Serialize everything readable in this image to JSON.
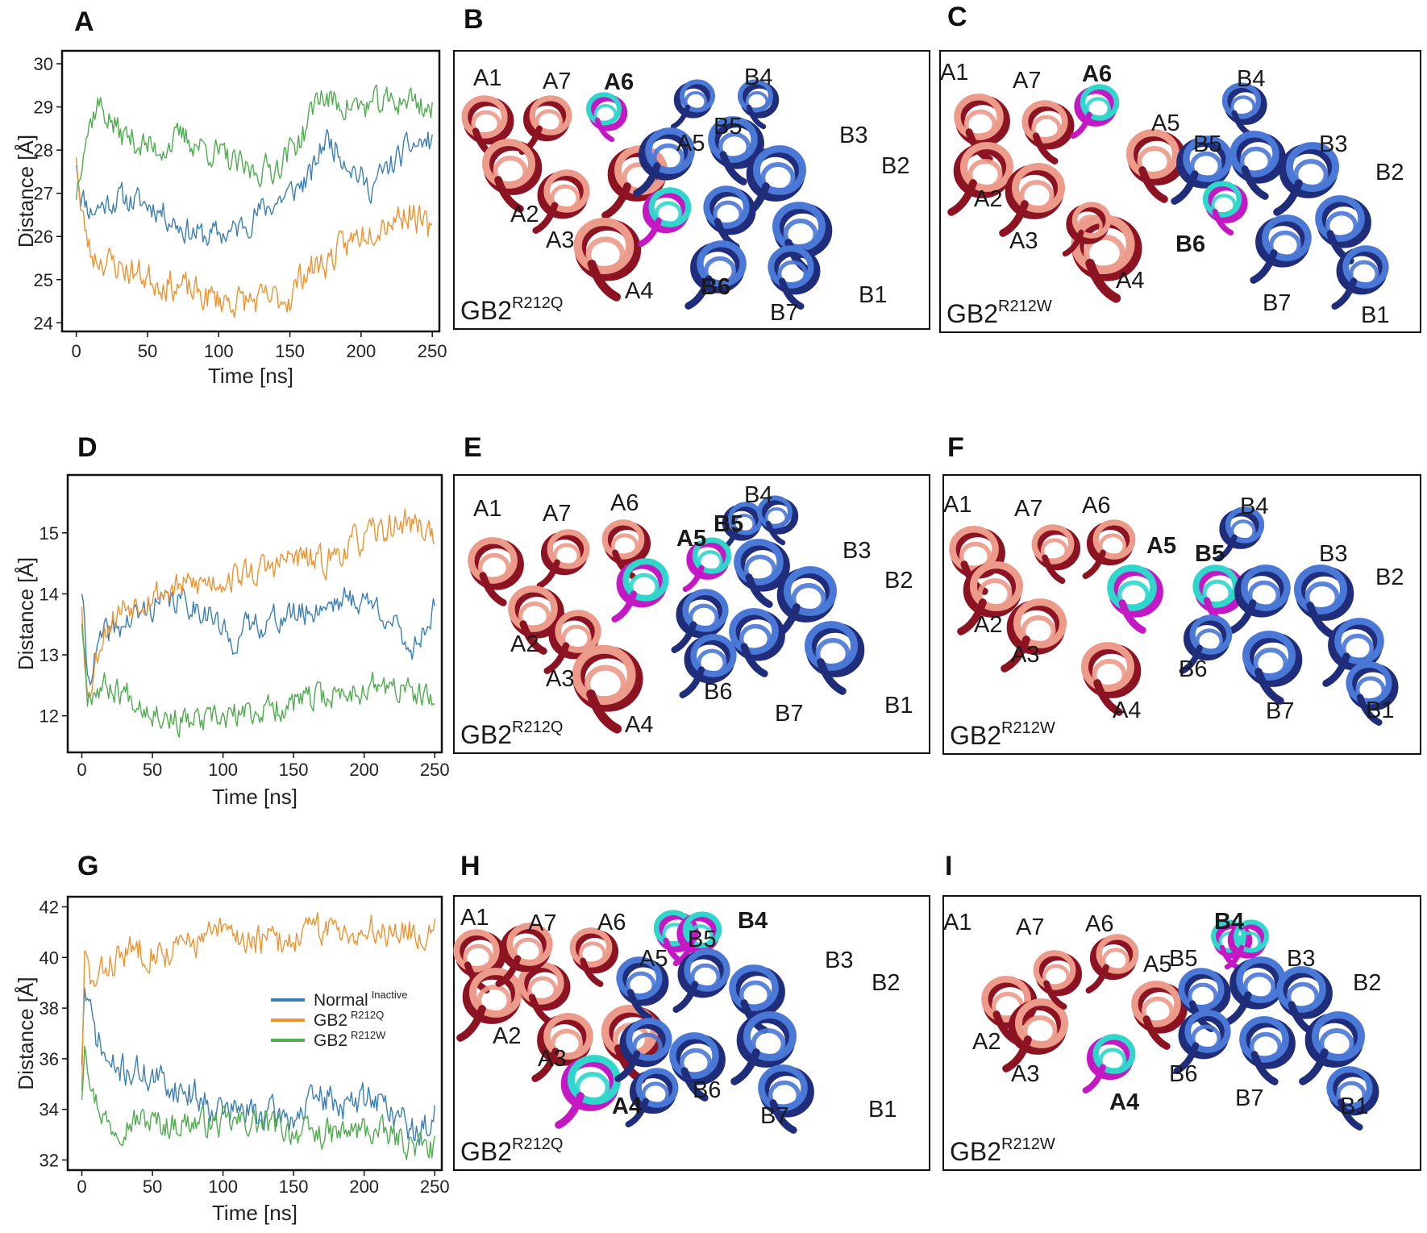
{
  "panels": [
    "A",
    "B",
    "C",
    "D",
    "E",
    "F",
    "G",
    "H",
    "I"
  ],
  "colors": {
    "normal": "#3b7fb6",
    "r212q": "#f0922f",
    "r212w": "#4fac4f",
    "helix_a_light": "#ec9a8a",
    "helix_a_dark": "#8c1422",
    "helix_b_light": "#4a78d6",
    "helix_b_dark": "#1f2d7a",
    "cyan": "#2fd6cc",
    "magenta": "#c418c4"
  },
  "chart_data": [
    {
      "panel": "A",
      "type": "line",
      "xlabel": "Time [ns]",
      "ylabel": "Distance [Å]",
      "xlim": [
        -10,
        255
      ],
      "ylim": [
        23.8,
        30.3
      ],
      "xticks": [
        0,
        50,
        100,
        150,
        200,
        250
      ],
      "yticks": [
        24,
        25,
        26,
        27,
        28,
        29,
        30
      ],
      "series": [
        {
          "name": "Normal Inactive",
          "key": "normal",
          "seed": 11,
          "noise": 0.28,
          "x": [
            0,
            3,
            10,
            30,
            55,
            75,
            90,
            110,
            130,
            150,
            165,
            175,
            190,
            205,
            220,
            235,
            250
          ],
          "values": [
            27.8,
            27.0,
            26.6,
            26.9,
            26.7,
            26.2,
            26.0,
            26.1,
            26.6,
            27.0,
            27.4,
            28.3,
            27.8,
            27.1,
            27.6,
            28.1,
            28.2
          ]
        },
        {
          "name": "GB2 R212Q",
          "key": "r212q",
          "seed": 23,
          "noise": 0.32,
          "x": [
            0,
            3,
            10,
            30,
            55,
            75,
            90,
            110,
            130,
            150,
            160,
            175,
            190,
            205,
            220,
            235,
            250
          ],
          "values": [
            28.0,
            26.6,
            25.6,
            25.3,
            25.0,
            24.8,
            24.6,
            24.5,
            24.5,
            24.6,
            25.2,
            25.4,
            25.8,
            26.2,
            26.4,
            26.6,
            26.0
          ]
        },
        {
          "name": "GB2 R212W",
          "key": "r212w",
          "seed": 37,
          "noise": 0.3,
          "x": [
            0,
            5,
            15,
            30,
            55,
            75,
            100,
            120,
            140,
            160,
            170,
            180,
            200,
            220,
            235,
            250
          ],
          "values": [
            27.0,
            28.2,
            29.1,
            28.4,
            28.0,
            28.3,
            27.9,
            27.5,
            27.6,
            28.4,
            29.3,
            29.1,
            29.0,
            29.1,
            29.2,
            28.9
          ]
        }
      ]
    },
    {
      "panel": "D",
      "type": "line",
      "xlabel": "Time [ns]",
      "ylabel": "Distance [Å]",
      "xlim": [
        -10,
        255
      ],
      "ylim": [
        11.4,
        15.95
      ],
      "xticks": [
        0,
        50,
        100,
        150,
        200,
        250
      ],
      "yticks": [
        12,
        13,
        14,
        15
      ],
      "series": [
        {
          "name": "Normal Inactive",
          "key": "normal",
          "seed": 41,
          "noise": 0.2,
          "x": [
            0,
            4,
            15,
            30,
            50,
            70,
            90,
            105,
            120,
            140,
            160,
            180,
            200,
            215,
            225,
            235,
            250
          ],
          "values": [
            14.1,
            12.6,
            13.3,
            13.5,
            13.8,
            13.9,
            13.7,
            13.2,
            13.5,
            13.6,
            13.7,
            13.9,
            13.9,
            13.7,
            13.3,
            13.1,
            13.8
          ]
        },
        {
          "name": "GB2 R212Q",
          "key": "r212q",
          "seed": 53,
          "noise": 0.22,
          "x": [
            0,
            4,
            15,
            30,
            50,
            70,
            90,
            110,
            130,
            150,
            170,
            190,
            210,
            230,
            250
          ],
          "values": [
            13.9,
            12.3,
            13.4,
            13.8,
            14.0,
            14.1,
            14.2,
            14.3,
            14.4,
            14.6,
            14.5,
            14.8,
            15.0,
            15.2,
            15.0
          ]
        },
        {
          "name": "GB2 R212W",
          "key": "r212w",
          "seed": 67,
          "noise": 0.2,
          "x": [
            0,
            4,
            15,
            30,
            50,
            70,
            90,
            110,
            130,
            150,
            170,
            190,
            210,
            230,
            250
          ],
          "values": [
            13.6,
            12.4,
            12.5,
            12.4,
            12.1,
            11.9,
            11.9,
            12.0,
            12.1,
            12.2,
            12.3,
            12.4,
            12.5,
            12.4,
            12.2
          ]
        }
      ]
    },
    {
      "panel": "G",
      "type": "line",
      "xlabel": "Time [ns]",
      "ylabel": "Distance [Å]",
      "xlim": [
        -10,
        255
      ],
      "ylim": [
        31.6,
        42.4
      ],
      "xticks": [
        0,
        50,
        100,
        150,
        200,
        250
      ],
      "yticks": [
        32,
        34,
        36,
        38,
        40,
        42
      ],
      "legend": [
        {
          "label": "Normal",
          "sup": "Inactive",
          "key": "normal"
        },
        {
          "label": "GB2",
          "sup": "R212Q",
          "key": "r212q"
        },
        {
          "label": "GB2",
          "sup": "R212W",
          "key": "r212w"
        }
      ],
      "legend_position": "right-center",
      "series": [
        {
          "name": "Normal Inactive",
          "key": "normal",
          "seed": 71,
          "noise": 0.55,
          "x": [
            0,
            2,
            8,
            20,
            40,
            60,
            80,
            100,
            130,
            150,
            170,
            190,
            205,
            220,
            240,
            250
          ],
          "values": [
            36.0,
            38.8,
            37.2,
            35.6,
            35.5,
            35.0,
            34.6,
            34.0,
            33.8,
            33.7,
            34.5,
            34.1,
            34.6,
            33.9,
            32.9,
            34.0
          ]
        },
        {
          "name": "GB2 R212Q",
          "key": "r212q",
          "seed": 83,
          "noise": 0.55,
          "x": [
            0,
            2,
            8,
            20,
            40,
            60,
            80,
            100,
            120,
            140,
            160,
            180,
            200,
            220,
            240,
            250
          ],
          "values": [
            35.0,
            40.0,
            38.8,
            39.8,
            40.4,
            40.2,
            40.6,
            41.0,
            40.7,
            40.6,
            41.0,
            41.2,
            41.0,
            41.2,
            40.9,
            41.3
          ]
        },
        {
          "name": "GB2 R212W",
          "key": "r212w",
          "seed": 97,
          "noise": 0.5,
          "x": [
            0,
            2,
            8,
            20,
            40,
            60,
            80,
            100,
            120,
            140,
            160,
            180,
            200,
            220,
            240,
            250
          ],
          "values": [
            34.6,
            37.0,
            34.6,
            33.3,
            33.6,
            33.4,
            33.5,
            33.4,
            33.5,
            33.3,
            33.0,
            33.0,
            33.2,
            32.9,
            32.5,
            32.4
          ]
        }
      ]
    }
  ],
  "structures": [
    {
      "panel": "B",
      "variant_base": "GB2",
      "variant_sup": "R212Q",
      "labels": [
        {
          "text": "A1",
          "bold": false
        },
        {
          "text": "A7",
          "bold": false
        },
        {
          "text": "A6",
          "bold": true
        },
        {
          "text": "A5",
          "bold": false
        },
        {
          "text": "A2",
          "bold": false
        },
        {
          "text": "A3",
          "bold": false
        },
        {
          "text": "A4",
          "bold": false
        },
        {
          "text": "B4",
          "bold": false
        },
        {
          "text": "B5",
          "bold": false
        },
        {
          "text": "B3",
          "bold": false
        },
        {
          "text": "B2",
          "bold": false
        },
        {
          "text": "B6",
          "bold": true
        },
        {
          "text": "B7",
          "bold": false
        },
        {
          "text": "B1",
          "bold": false
        }
      ]
    },
    {
      "panel": "C",
      "variant_base": "GB2",
      "variant_sup": "R212W",
      "labels": [
        {
          "text": "A1",
          "bold": false
        },
        {
          "text": "A7",
          "bold": false
        },
        {
          "text": "A6",
          "bold": true
        },
        {
          "text": "A5",
          "bold": false
        },
        {
          "text": "A2",
          "bold": false
        },
        {
          "text": "A3",
          "bold": false
        },
        {
          "text": "A4",
          "bold": false
        },
        {
          "text": "B4",
          "bold": false
        },
        {
          "text": "B5",
          "bold": false
        },
        {
          "text": "B3",
          "bold": false
        },
        {
          "text": "B2",
          "bold": false
        },
        {
          "text": "B6",
          "bold": true
        },
        {
          "text": "B7",
          "bold": false
        },
        {
          "text": "B1",
          "bold": false
        }
      ]
    },
    {
      "panel": "E",
      "variant_base": "GB2",
      "variant_sup": "R212Q",
      "labels": [
        {
          "text": "A1",
          "bold": false
        },
        {
          "text": "A7",
          "bold": false
        },
        {
          "text": "A6",
          "bold": false
        },
        {
          "text": "A5",
          "bold": true
        },
        {
          "text": "A2",
          "bold": false
        },
        {
          "text": "A3",
          "bold": false
        },
        {
          "text": "A4",
          "bold": false
        },
        {
          "text": "B4",
          "bold": false
        },
        {
          "text": "B5",
          "bold": true
        },
        {
          "text": "B3",
          "bold": false
        },
        {
          "text": "B2",
          "bold": false
        },
        {
          "text": "B6",
          "bold": false
        },
        {
          "text": "B7",
          "bold": false
        },
        {
          "text": "B1",
          "bold": false
        }
      ]
    },
    {
      "panel": "F",
      "variant_base": "GB2",
      "variant_sup": "R212W",
      "labels": [
        {
          "text": "A1",
          "bold": false
        },
        {
          "text": "A7",
          "bold": false
        },
        {
          "text": "A6",
          "bold": false
        },
        {
          "text": "A5",
          "bold": true
        },
        {
          "text": "A2",
          "bold": false
        },
        {
          "text": "A3",
          "bold": false
        },
        {
          "text": "A4",
          "bold": false
        },
        {
          "text": "B4",
          "bold": false
        },
        {
          "text": "B5",
          "bold": true
        },
        {
          "text": "B3",
          "bold": false
        },
        {
          "text": "B2",
          "bold": false
        },
        {
          "text": "B6",
          "bold": false
        },
        {
          "text": "B7",
          "bold": false
        },
        {
          "text": "B1",
          "bold": false
        }
      ]
    },
    {
      "panel": "H",
      "variant_base": "GB2",
      "variant_sup": "R212Q",
      "labels": [
        {
          "text": "A1",
          "bold": false
        },
        {
          "text": "A7",
          "bold": false
        },
        {
          "text": "A6",
          "bold": false
        },
        {
          "text": "A5",
          "bold": false
        },
        {
          "text": "A2",
          "bold": false
        },
        {
          "text": "A3",
          "bold": false
        },
        {
          "text": "A4",
          "bold": true
        },
        {
          "text": "B4",
          "bold": true
        },
        {
          "text": "B5",
          "bold": false
        },
        {
          "text": "B3",
          "bold": false
        },
        {
          "text": "B2",
          "bold": false
        },
        {
          "text": "B6",
          "bold": false
        },
        {
          "text": "B7",
          "bold": false
        },
        {
          "text": "B1",
          "bold": false
        }
      ]
    },
    {
      "panel": "I",
      "variant_base": "GB2",
      "variant_sup": "R212W",
      "labels": [
        {
          "text": "A1",
          "bold": false
        },
        {
          "text": "A7",
          "bold": false
        },
        {
          "text": "A6",
          "bold": false
        },
        {
          "text": "A5",
          "bold": false
        },
        {
          "text": "A2",
          "bold": false
        },
        {
          "text": "A3",
          "bold": false
        },
        {
          "text": "A4",
          "bold": true
        },
        {
          "text": "B4",
          "bold": true
        },
        {
          "text": "B5",
          "bold": false
        },
        {
          "text": "B3",
          "bold": false
        },
        {
          "text": "B2",
          "bold": false
        },
        {
          "text": "B6",
          "bold": false
        },
        {
          "text": "B7",
          "bold": false
        },
        {
          "text": "B1",
          "bold": false
        }
      ]
    }
  ]
}
